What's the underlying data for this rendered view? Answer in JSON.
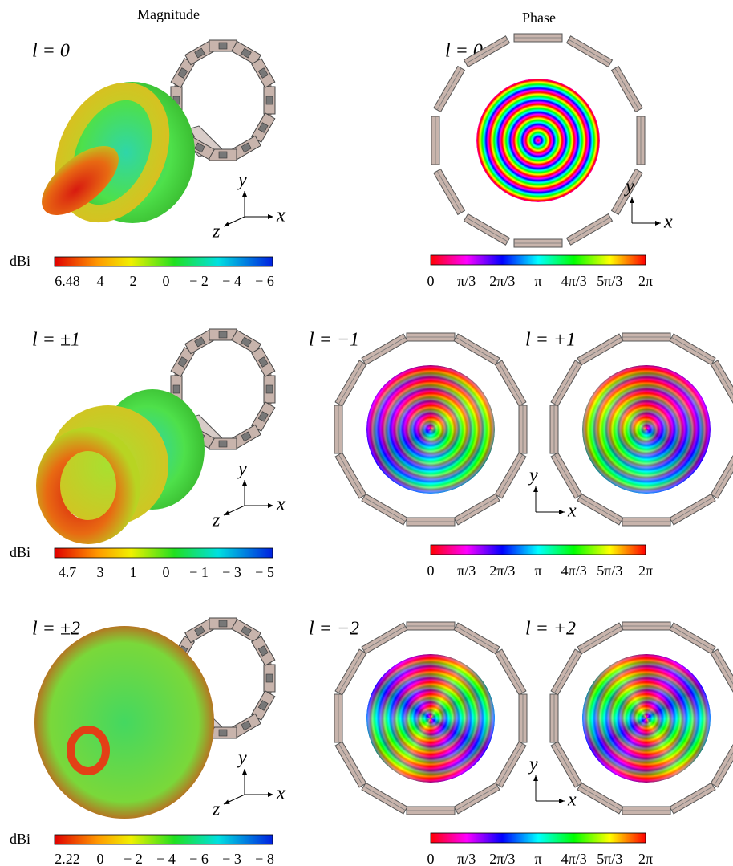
{
  "headers": {
    "magnitude": "Magnitude",
    "phase": "Phase"
  },
  "axes": {
    "x": "x",
    "y": "y",
    "z": "z"
  },
  "rows": [
    {
      "magnitude_label": "l = 0",
      "phase_labels": [
        "l = 0"
      ],
      "magnitude_colorbar": {
        "unit": "dBi",
        "ticks": [
          "6.48",
          "4",
          "2",
          "0",
          "− 2",
          "− 4",
          "− 6"
        ]
      },
      "phase_colorbar": {
        "ticks": [
          "0",
          "π/3",
          "2π/3",
          "π",
          "4π/3",
          "5π/3",
          "2π"
        ]
      }
    },
    {
      "magnitude_label": "l = ±1",
      "phase_labels": [
        "l = −1",
        "l = +1"
      ],
      "magnitude_colorbar": {
        "unit": "dBi",
        "ticks": [
          "4.7",
          "3",
          "1",
          "0",
          "− 1",
          "− 3",
          "− 5"
        ]
      },
      "phase_colorbar": {
        "ticks": [
          "0",
          "π/3",
          "2π/3",
          "π",
          "4π/3",
          "5π/3",
          "2π"
        ]
      }
    },
    {
      "magnitude_label": "l = ±2",
      "phase_labels": [
        "l = −2",
        "l = +2"
      ],
      "magnitude_colorbar": {
        "unit": "dBi",
        "ticks": [
          "2.22",
          "0",
          "− 2",
          "− 4",
          "− 6",
          "− 3",
          "− 8"
        ]
      },
      "phase_colorbar": {
        "ticks": [
          "0",
          "π/3",
          "2π/3",
          "π",
          "4π/3",
          "5π/3",
          "2π"
        ]
      }
    }
  ]
}
